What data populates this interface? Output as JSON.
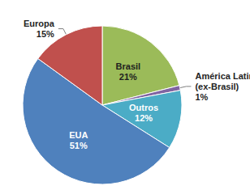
{
  "chart_data": {
    "type": "pie",
    "categories": [
      "Brasil",
      "América Latina (ex-Brasil)",
      "Outros",
      "EUA",
      "Europa"
    ],
    "values": [
      21,
      1,
      12,
      51,
      15
    ],
    "value_labels": [
      "21%",
      "1%",
      "12%",
      "51%",
      "15%"
    ],
    "colors": [
      "#9bbb59",
      "#8064a2",
      "#4bacc6",
      "#4f81bd",
      "#c0504d"
    ],
    "data_labels": true
  }
}
